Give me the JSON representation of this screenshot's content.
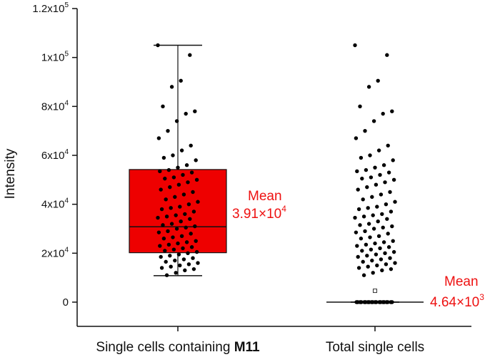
{
  "chart_data": {
    "type": "box",
    "ylabel": "Intensity",
    "ylim": [
      -5000,
      120000
    ],
    "y_ticks": [
      {
        "value": 0,
        "label": "0"
      },
      {
        "value": 20000,
        "label": "2x10",
        "exp": "4"
      },
      {
        "value": 40000,
        "label": "4x10",
        "exp": "4"
      },
      {
        "value": 60000,
        "label": "6x10",
        "exp": "4"
      },
      {
        "value": 80000,
        "label": "8x10",
        "exp": "4"
      },
      {
        "value": 100000,
        "label": "1x10",
        "exp": "5"
      },
      {
        "value": 120000,
        "label": "1.2x10",
        "exp": "5"
      }
    ],
    "categories": [
      {
        "label_prefix": "Single cells containing ",
        "label_bold": "M11"
      },
      {
        "label_prefix": "Total single cells",
        "label_bold": ""
      }
    ],
    "boxes": [
      {
        "category_index": 0,
        "q1": 20200,
        "median": 30800,
        "q3": 54200,
        "whisker_low": 10800,
        "whisker_high": 105000,
        "fill": "#ee0000"
      },
      {
        "category_index": 1,
        "q1": 0,
        "median": 0,
        "q3": 0,
        "whisker_low": 0,
        "whisker_high": 0,
        "fill": "#ee0000"
      }
    ],
    "means": [
      {
        "category_index": 1,
        "value": 4640,
        "marker": "open-square"
      }
    ],
    "annotations": [
      {
        "id": "mean-m11",
        "title": "Mean",
        "mantissa": "3.91×10",
        "exp": "4",
        "color": "#ee1111"
      },
      {
        "id": "mean-total",
        "title": "Mean",
        "mantissa": "4.64×10",
        "exp": "3",
        "color": "#ee1111"
      }
    ],
    "points": [
      {
        "series": 0,
        "y": [
          105000,
          101000,
          90500,
          88000,
          80000,
          78000,
          77000,
          74000,
          70000,
          67000,
          64000,
          62000,
          60000,
          59000,
          58000,
          56000,
          55000,
          54000,
          53500,
          53000,
          52000,
          51000,
          50500,
          50000,
          49000,
          48000,
          47000,
          46000,
          45000,
          44000,
          43000,
          42000,
          41000,
          40000,
          39000,
          38500,
          38000,
          37000,
          36000,
          35500,
          35000,
          34500,
          34000,
          33000,
          32000,
          31500,
          31000,
          30500,
          30000,
          29000,
          28500,
          28000,
          27000,
          26500,
          26000,
          25000,
          24500,
          24000,
          23500,
          23000,
          22500,
          22000,
          21500,
          21000,
          20500,
          20000,
          19500,
          19000,
          18500,
          18000,
          17500,
          17000,
          16500,
          16000,
          15500,
          15000,
          14500,
          14000,
          13500,
          13000,
          12000,
          11000
        ]
      },
      {
        "series": 1,
        "y": [
          105000,
          101000,
          90500,
          88000,
          80000,
          78000,
          77000,
          74000,
          70000,
          67000,
          64000,
          62000,
          60000,
          59000,
          58000,
          56000,
          55000,
          54000,
          53500,
          53000,
          52000,
          51000,
          50500,
          50000,
          49000,
          48000,
          47000,
          46000,
          45000,
          44000,
          43000,
          42000,
          41000,
          40000,
          39000,
          38500,
          38000,
          37000,
          36000,
          35500,
          35000,
          34500,
          34000,
          33000,
          32000,
          31500,
          31000,
          30500,
          30000,
          29000,
          28500,
          28000,
          27000,
          26500,
          26000,
          25000,
          24500,
          24000,
          23500,
          23000,
          22500,
          22000,
          21500,
          21000,
          20500,
          20000,
          19500,
          19000,
          18500,
          18000,
          17500,
          17000,
          16500,
          16000,
          15500,
          15000,
          14500,
          14000,
          13500,
          13000,
          12000,
          11000,
          0,
          0,
          0,
          0,
          0,
          0,
          0,
          0,
          0,
          0,
          0,
          0,
          0,
          0,
          0,
          0,
          0,
          0,
          0,
          0,
          0,
          0,
          0,
          0,
          0,
          0,
          0,
          0,
          0,
          0
        ]
      }
    ]
  }
}
